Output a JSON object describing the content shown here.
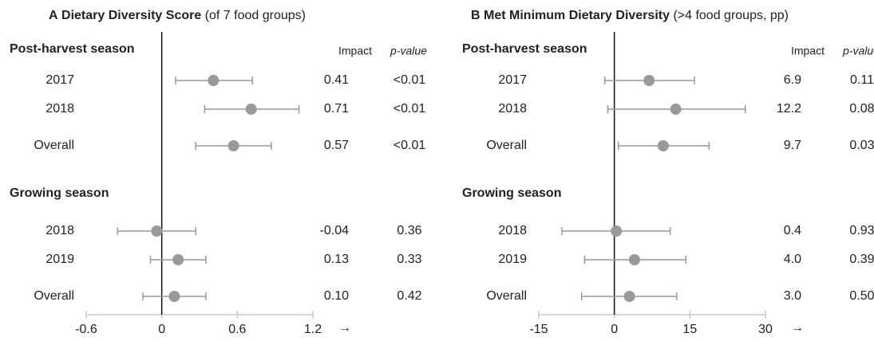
{
  "chart_data": [
    {
      "type": "forest",
      "panel": "A",
      "title": "Dietary Diversity Score",
      "subtitle": "(of 7 food groups)",
      "columns": [
        "Impact",
        "p-value"
      ],
      "color": "#999999",
      "groups": [
        {
          "name": "Post-harvest season",
          "categories": [
            "2017",
            "2018",
            "Overall"
          ],
          "values": [
            0.41,
            0.71,
            0.57
          ],
          "ci_low": [
            0.11,
            0.34,
            0.27
          ],
          "ci_high": [
            0.72,
            1.09,
            0.87
          ],
          "value_labels": [
            "0.41",
            "0.71",
            "0.57"
          ],
          "p_values": [
            "<0.01",
            "<0.01",
            "<0.01"
          ]
        },
        {
          "name": "Growing season",
          "categories": [
            "2018",
            "2019",
            "Overall"
          ],
          "values": [
            -0.04,
            0.13,
            0.1
          ],
          "ci_low": [
            -0.35,
            -0.09,
            -0.15
          ],
          "ci_high": [
            0.27,
            0.35,
            0.35
          ],
          "value_labels": [
            "-0.04",
            "0.13",
            "0.10"
          ],
          "p_values": [
            "0.36",
            "0.33",
            "0.42"
          ]
        }
      ],
      "xlim": [
        -0.6,
        1.2
      ],
      "xticks": [
        -0.6,
        0,
        0.6,
        1.2
      ],
      "axis_arrow": "→"
    },
    {
      "type": "forest",
      "panel": "B",
      "title": "Met Minimum Dietary Diversity",
      "subtitle": "(>4 food groups, pp)",
      "columns": [
        "Impact",
        "p-value"
      ],
      "color": "#999999",
      "groups": [
        {
          "name": "Post-harvest season",
          "categories": [
            "2017",
            "2018",
            "Overall"
          ],
          "values": [
            6.9,
            12.2,
            9.7
          ],
          "ci_low": [
            -1.9,
            -1.3,
            0.8
          ],
          "ci_high": [
            15.9,
            26,
            18.8
          ],
          "value_labels": [
            "6.9",
            "12.2",
            "9.7"
          ],
          "p_values": [
            "0.11",
            "0.08",
            "0.03"
          ]
        },
        {
          "name": "Growing season",
          "categories": [
            "2018",
            "2019",
            "Overall"
          ],
          "values": [
            0.4,
            4.0,
            3.0
          ],
          "ci_low": [
            -10.4,
            -5.9,
            -6.5
          ],
          "ci_high": [
            11.1,
            14.2,
            12.4
          ],
          "value_labels": [
            "0.4",
            "4.0",
            "3.0"
          ],
          "p_values": [
            "0.93",
            "0.39",
            "0.50"
          ]
        }
      ],
      "xlim": [
        -15,
        30
      ],
      "xticks": [
        -15,
        0,
        15,
        30
      ],
      "axis_arrow": "→"
    }
  ]
}
